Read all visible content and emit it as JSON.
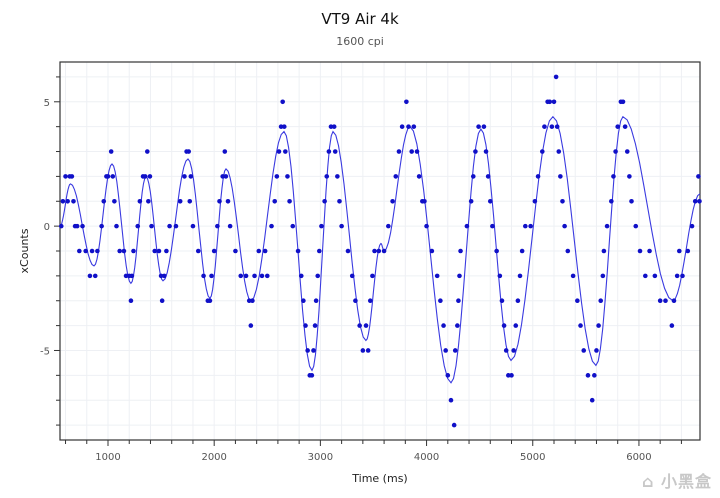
{
  "chart_data": {
    "type": "scatter",
    "title": "VT9 Air 4k",
    "subtitle": "1600 cpi",
    "xlabel": "Time (ms)",
    "ylabel": "xCounts",
    "xlim": [
      548,
      6575
    ],
    "ylim": [
      -8.6,
      6.6
    ],
    "x_ticks": [
      1000,
      2000,
      3000,
      4000,
      5000,
      6000
    ],
    "y_ticks": [
      5,
      0,
      -5
    ],
    "grid": true,
    "legend": "none",
    "colors": {
      "points": "#1010c8",
      "line": "#3a3ae0"
    },
    "smoothed_line_extrema": [
      [
        548,
        0
      ],
      [
        647,
        1.7
      ],
      [
        868,
        -1.6
      ],
      [
        1038,
        2.5
      ],
      [
        1216,
        -2.3
      ],
      [
        1358,
        2.0
      ],
      [
        1518,
        -2.2
      ],
      [
        1753,
        2.7
      ],
      [
        1960,
        -2.9
      ],
      [
        2111,
        2.3
      ],
      [
        2346,
        -3.0
      ],
      [
        2657,
        3.8
      ],
      [
        2921,
        -5.8
      ],
      [
        3119,
        3.8
      ],
      [
        3429,
        -4.6
      ],
      [
        3570,
        -0.7
      ],
      [
        3600,
        -1.0
      ],
      [
        3844,
        4.0
      ],
      [
        4230,
        -6.3
      ],
      [
        4512,
        3.9
      ],
      [
        4795,
        -5.4
      ],
      [
        5190,
        4.4
      ],
      [
        5595,
        -5.6
      ],
      [
        5849,
        4.4
      ],
      [
        6320,
        -3.0
      ],
      [
        6575,
        1.3
      ]
    ],
    "points": [
      [
        560,
        0
      ],
      [
        575,
        1
      ],
      [
        600,
        2
      ],
      [
        620,
        1
      ],
      [
        640,
        2
      ],
      [
        660,
        2
      ],
      [
        675,
        1
      ],
      [
        690,
        0
      ],
      [
        710,
        0
      ],
      [
        730,
        -1
      ],
      [
        760,
        0
      ],
      [
        790,
        -1
      ],
      [
        830,
        -2
      ],
      [
        850,
        -1
      ],
      [
        880,
        -2
      ],
      [
        900,
        -1
      ],
      [
        940,
        0
      ],
      [
        960,
        1
      ],
      [
        985,
        2
      ],
      [
        1000,
        2
      ],
      [
        1030,
        3
      ],
      [
        1045,
        2
      ],
      [
        1060,
        1
      ],
      [
        1080,
        0
      ],
      [
        1110,
        -1
      ],
      [
        1150,
        -1
      ],
      [
        1170,
        -2
      ],
      [
        1200,
        -2
      ],
      [
        1216,
        -3
      ],
      [
        1225,
        -2
      ],
      [
        1240,
        -1
      ],
      [
        1280,
        0
      ],
      [
        1300,
        1
      ],
      [
        1330,
        2
      ],
      [
        1350,
        2
      ],
      [
        1370,
        3
      ],
      [
        1380,
        1
      ],
      [
        1395,
        2
      ],
      [
        1410,
        0
      ],
      [
        1440,
        -1
      ],
      [
        1480,
        -1
      ],
      [
        1500,
        -2
      ],
      [
        1510,
        -3
      ],
      [
        1530,
        -2
      ],
      [
        1550,
        -1
      ],
      [
        1580,
        0
      ],
      [
        1640,
        0
      ],
      [
        1680,
        1
      ],
      [
        1720,
        2
      ],
      [
        1740,
        3
      ],
      [
        1760,
        3
      ],
      [
        1770,
        1
      ],
      [
        1780,
        2
      ],
      [
        1800,
        0
      ],
      [
        1850,
        -1
      ],
      [
        1900,
        -2
      ],
      [
        1940,
        -3
      ],
      [
        1960,
        -3
      ],
      [
        1975,
        -2
      ],
      [
        2000,
        -1
      ],
      [
        2030,
        0
      ],
      [
        2050,
        1
      ],
      [
        2080,
        2
      ],
      [
        2100,
        3
      ],
      [
        2110,
        2
      ],
      [
        2130,
        1
      ],
      [
        2150,
        0
      ],
      [
        2200,
        -1
      ],
      [
        2250,
        -2
      ],
      [
        2300,
        -2
      ],
      [
        2330,
        -3
      ],
      [
        2345,
        -4
      ],
      [
        2360,
        -3
      ],
      [
        2380,
        -2
      ],
      [
        2420,
        -1
      ],
      [
        2450,
        -2
      ],
      [
        2480,
        -1
      ],
      [
        2500,
        -2
      ],
      [
        2540,
        0
      ],
      [
        2570,
        1
      ],
      [
        2590,
        2
      ],
      [
        2610,
        3
      ],
      [
        2630,
        4
      ],
      [
        2645,
        5
      ],
      [
        2660,
        4
      ],
      [
        2670,
        3
      ],
      [
        2690,
        2
      ],
      [
        2710,
        1
      ],
      [
        2740,
        0
      ],
      [
        2790,
        -1
      ],
      [
        2820,
        -2
      ],
      [
        2840,
        -3
      ],
      [
        2860,
        -4
      ],
      [
        2880,
        -5
      ],
      [
        2900,
        -6
      ],
      [
        2920,
        -6
      ],
      [
        2935,
        -5
      ],
      [
        2950,
        -4
      ],
      [
        2960,
        -3
      ],
      [
        2975,
        -2
      ],
      [
        2990,
        -1
      ],
      [
        3010,
        0
      ],
      [
        3040,
        1
      ],
      [
        3060,
        2
      ],
      [
        3080,
        3
      ],
      [
        3100,
        4
      ],
      [
        3130,
        4
      ],
      [
        3140,
        3
      ],
      [
        3160,
        2
      ],
      [
        3180,
        1
      ],
      [
        3200,
        0
      ],
      [
        3260,
        -1
      ],
      [
        3300,
        -2
      ],
      [
        3330,
        -3
      ],
      [
        3370,
        -4
      ],
      [
        3400,
        -5
      ],
      [
        3430,
        -4
      ],
      [
        3450,
        -5
      ],
      [
        3470,
        -3
      ],
      [
        3490,
        -2
      ],
      [
        3510,
        -1
      ],
      [
        3550,
        -1
      ],
      [
        3600,
        -1
      ],
      [
        3640,
        0
      ],
      [
        3680,
        1
      ],
      [
        3710,
        2
      ],
      [
        3740,
        3
      ],
      [
        3770,
        4
      ],
      [
        3810,
        5
      ],
      [
        3830,
        4
      ],
      [
        3860,
        3
      ],
      [
        3880,
        4
      ],
      [
        3910,
        3
      ],
      [
        3930,
        2
      ],
      [
        3960,
        1
      ],
      [
        3980,
        1
      ],
      [
        4000,
        0
      ],
      [
        4050,
        -1
      ],
      [
        4100,
        -2
      ],
      [
        4130,
        -3
      ],
      [
        4160,
        -4
      ],
      [
        4180,
        -5
      ],
      [
        4200,
        -6
      ],
      [
        4230,
        -7
      ],
      [
        4260,
        -8
      ],
      [
        4270,
        -5
      ],
      [
        4290,
        -4
      ],
      [
        4300,
        -3
      ],
      [
        4310,
        -2
      ],
      [
        4320,
        -1
      ],
      [
        4380,
        0
      ],
      [
        4420,
        1
      ],
      [
        4440,
        2
      ],
      [
        4460,
        3
      ],
      [
        4490,
        4
      ],
      [
        4540,
        4
      ],
      [
        4560,
        3
      ],
      [
        4580,
        2
      ],
      [
        4600,
        1
      ],
      [
        4620,
        0
      ],
      [
        4660,
        -1
      ],
      [
        4690,
        -2
      ],
      [
        4710,
        -3
      ],
      [
        4730,
        -4
      ],
      [
        4750,
        -5
      ],
      [
        4770,
        -6
      ],
      [
        4800,
        -6
      ],
      [
        4820,
        -5
      ],
      [
        4840,
        -4
      ],
      [
        4860,
        -3
      ],
      [
        4880,
        -2
      ],
      [
        4900,
        -1
      ],
      [
        4930,
        0
      ],
      [
        4980,
        0
      ],
      [
        5020,
        1
      ],
      [
        5050,
        2
      ],
      [
        5090,
        3
      ],
      [
        5110,
        4
      ],
      [
        5140,
        5
      ],
      [
        5160,
        5
      ],
      [
        5180,
        4
      ],
      [
        5200,
        5
      ],
      [
        5220,
        6
      ],
      [
        5230,
        4
      ],
      [
        5245,
        3
      ],
      [
        5260,
        2
      ],
      [
        5280,
        1
      ],
      [
        5300,
        0
      ],
      [
        5330,
        -1
      ],
      [
        5380,
        -2
      ],
      [
        5420,
        -3
      ],
      [
        5450,
        -4
      ],
      [
        5480,
        -5
      ],
      [
        5520,
        -6
      ],
      [
        5560,
        -7
      ],
      [
        5580,
        -6
      ],
      [
        5600,
        -5
      ],
      [
        5620,
        -4
      ],
      [
        5640,
        -3
      ],
      [
        5660,
        -2
      ],
      [
        5670,
        -1
      ],
      [
        5700,
        0
      ],
      [
        5740,
        1
      ],
      [
        5760,
        2
      ],
      [
        5780,
        3
      ],
      [
        5800,
        4
      ],
      [
        5830,
        5
      ],
      [
        5850,
        5
      ],
      [
        5870,
        4
      ],
      [
        5890,
        3
      ],
      [
        5910,
        2
      ],
      [
        5930,
        1
      ],
      [
        5970,
        0
      ],
      [
        6010,
        -1
      ],
      [
        6060,
        -2
      ],
      [
        6100,
        -1
      ],
      [
        6150,
        -2
      ],
      [
        6200,
        -3
      ],
      [
        6250,
        -3
      ],
      [
        6310,
        -4
      ],
      [
        6330,
        -3
      ],
      [
        6360,
        -2
      ],
      [
        6380,
        -1
      ],
      [
        6410,
        -2
      ],
      [
        6460,
        -1
      ],
      [
        6500,
        0
      ],
      [
        6530,
        1
      ],
      [
        6560,
        2
      ],
      [
        6570,
        1
      ]
    ]
  },
  "watermark": "小黑盒"
}
